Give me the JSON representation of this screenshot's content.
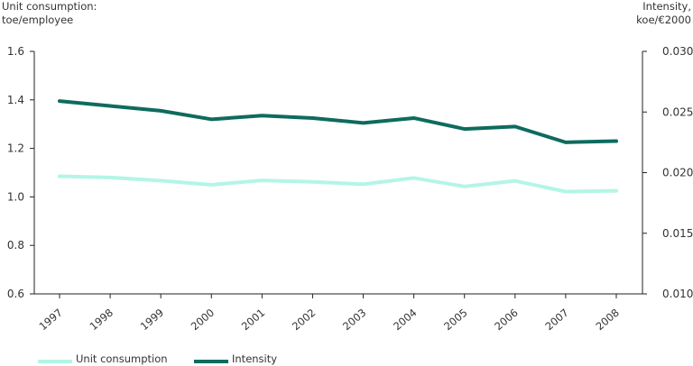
{
  "chart_data": {
    "type": "line",
    "title": "",
    "ylabel_left_line1": "Unit consumption:",
    "ylabel_left_line2": "toe/employee",
    "ylabel_right_line1": "Intensity,",
    "ylabel_right_line2": "koe/€2000",
    "categories": [
      "1997",
      "1998",
      "1999",
      "2000",
      "2001",
      "2002",
      "2003",
      "2004",
      "2005",
      "2006",
      "2007",
      "2008"
    ],
    "ylim_left": [
      0.6,
      1.6
    ],
    "yticks_left": [
      "0.6",
      "0.8",
      "1.0",
      "1.2",
      "1.4",
      "1.6"
    ],
    "ylim_right": [
      0.01,
      0.03
    ],
    "yticks_right": [
      "0.010",
      "0.015",
      "0.020",
      "0.025",
      "0.030"
    ],
    "series": [
      {
        "name": "Unit consumption",
        "axis": "left",
        "color": "#b3f5e6",
        "values": [
          1.085,
          1.08,
          1.067,
          1.05,
          1.068,
          1.062,
          1.052,
          1.078,
          1.043,
          1.066,
          1.022,
          1.025
        ]
      },
      {
        "name": "Intensity",
        "axis": "right",
        "color": "#0e6b5e",
        "values": [
          0.0259,
          0.0255,
          0.0251,
          0.0244,
          0.0247,
          0.0245,
          0.0241,
          0.0245,
          0.0236,
          0.0238,
          0.0225,
          0.0226
        ]
      }
    ],
    "grid": false,
    "legend_position": "bottom-left"
  }
}
